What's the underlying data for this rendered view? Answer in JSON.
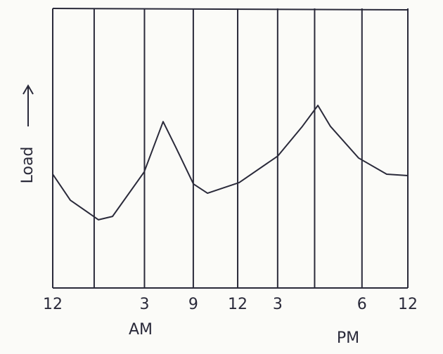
{
  "chart_data": {
    "type": "line",
    "y_label": "Load",
    "annotations": [
      "AM",
      "PM"
    ],
    "xlim": [
      0,
      24
    ],
    "ylim": [
      0,
      10
    ],
    "xticks": [
      {
        "value": 0,
        "label": "12"
      },
      {
        "value": 2.8,
        "label": null
      },
      {
        "value": 6.2,
        "label": "3"
      },
      {
        "value": 9.5,
        "label": "9"
      },
      {
        "value": 12.5,
        "label": "12"
      },
      {
        "value": 15.2,
        "label": "3"
      },
      {
        "value": 17.7,
        "label": null
      },
      {
        "value": 20.9,
        "label": "6"
      },
      {
        "value": 24,
        "label": "12"
      }
    ],
    "grid": true,
    "series": [
      {
        "name": "Load",
        "color": "#2a2a3a",
        "x": [
          0,
          1.19,
          3.09,
          4.04,
          6.18,
          7.46,
          8.32,
          9.51,
          10.46,
          12.6,
          15.21,
          16.87,
          17.92,
          18.77,
          20.67,
          22.57,
          24
        ],
        "values": [
          4.07,
          3.14,
          2.44,
          2.56,
          4.15,
          5.95,
          5.03,
          3.72,
          3.39,
          3.77,
          4.72,
          5.78,
          6.53,
          5.78,
          4.65,
          4.07,
          4.02
        ]
      }
    ]
  }
}
